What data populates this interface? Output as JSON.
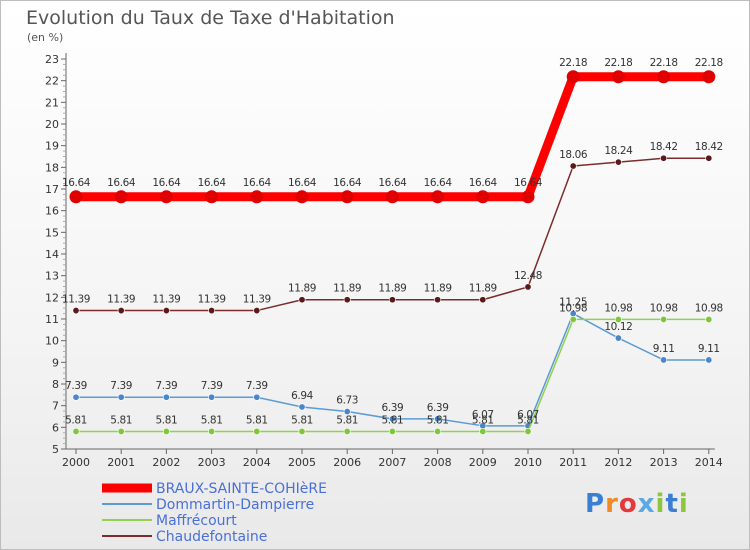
{
  "title": "Evolution du Taux de Taxe d'Habitation",
  "unit": "(en %)",
  "logo": "Proxiti",
  "chart_data": {
    "type": "line",
    "title": "Evolution du Taux de Taxe d'Habitation",
    "ylabel": "(en %)",
    "ylim": [
      5,
      23
    ],
    "yticks": [
      5,
      6,
      7,
      8,
      9,
      10,
      11,
      12,
      13,
      14,
      15,
      16,
      17,
      18,
      19,
      20,
      21,
      22,
      23
    ],
    "x": [
      "2000",
      "2001",
      "2002",
      "2003",
      "2004",
      "2005",
      "2006",
      "2007",
      "2008",
      "2009",
      "2010",
      "2011",
      "2012",
      "2013",
      "2014"
    ],
    "grid": false,
    "legend_position": "bottom-left",
    "series": [
      {
        "name": "BRAUX-SAINTE-COHIèRE",
        "color": "#ff0000",
        "values": [
          16.64,
          16.64,
          16.64,
          16.64,
          16.64,
          16.64,
          16.64,
          16.64,
          16.64,
          16.64,
          16.64,
          22.18,
          22.18,
          22.18,
          22.18
        ],
        "labels": [
          "16.64",
          "16.64",
          "16.64",
          "16.64",
          "16.64",
          "16.64",
          "16.64",
          "16.64",
          "16.64",
          "16.64",
          "16.64",
          "22.18",
          "22.18",
          "22.18",
          "22.18"
        ]
      },
      {
        "name": "Dommartin-Dampierre",
        "color": "#5b9bd5",
        "values": [
          7.39,
          7.39,
          7.39,
          7.39,
          7.39,
          6.94,
          6.73,
          6.39,
          6.39,
          6.07,
          6.07,
          11.25,
          10.12,
          9.11,
          9.11
        ],
        "labels": [
          "7.39",
          "7.39",
          "7.39",
          "7.39",
          "7.39",
          "6.94",
          "6.73",
          "6.39",
          "6.39",
          "6.07",
          "6.07",
          "11.25",
          "10.12",
          "9.11",
          "9.11"
        ]
      },
      {
        "name": "Maffrécourt",
        "color": "#92d050",
        "values": [
          5.81,
          5.81,
          5.81,
          5.81,
          5.81,
          5.81,
          5.81,
          5.81,
          5.81,
          5.81,
          5.81,
          10.98,
          10.98,
          10.98,
          10.98
        ],
        "labels": [
          "5.81",
          "5.81",
          "5.81",
          "5.81",
          "5.81",
          "5.81",
          "5.81",
          "5.81",
          "5.81",
          "5.81",
          "5.81",
          "10.98",
          "10.98",
          "10.98",
          "10.98"
        ]
      },
      {
        "name": "Chaudefontaine",
        "color": "#7b2c2c",
        "values": [
          11.39,
          11.39,
          11.39,
          11.39,
          11.39,
          11.89,
          11.89,
          11.89,
          11.89,
          11.89,
          12.48,
          18.06,
          18.24,
          18.42,
          18.42
        ],
        "labels": [
          "11.39",
          "11.39",
          "11.39",
          "11.39",
          "11.39",
          "11.89",
          "11.89",
          "11.89",
          "11.89",
          "11.89",
          "12.48",
          "18.06",
          "18.24",
          "18.42",
          "18.42"
        ]
      }
    ]
  }
}
